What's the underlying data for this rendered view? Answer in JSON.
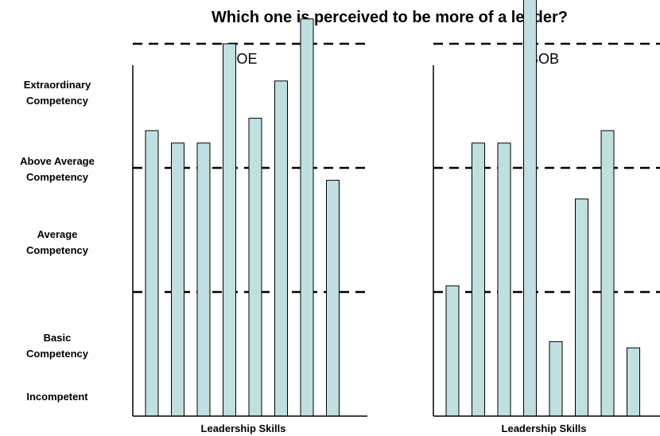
{
  "chart_data": {
    "type": "bar",
    "title": "Which one is perceived to be more of a leader?",
    "y_levels": [
      {
        "lines": [
          "Extraordinary",
          "Competency"
        ]
      },
      {
        "lines": [
          "Above Average",
          "Competency"
        ]
      },
      {
        "lines": [
          "Average",
          "Competency"
        ]
      },
      {
        "lines": [
          "Basic",
          "Competency"
        ]
      },
      {
        "lines": [
          "Incompetent"
        ]
      }
    ],
    "thresholds": [
      1,
      2,
      3
    ],
    "ylim": [
      0,
      4.6
    ],
    "bar_color": "#bfdfe0",
    "panels": [
      {
        "title": "JOE",
        "xlabel": "Leadership Skills",
        "values": [
          2.3,
          2.2,
          2.2,
          3.0,
          2.4,
          2.7,
          3.2,
          1.9
        ]
      },
      {
        "title": "BOB",
        "xlabel": "Leadership Skills",
        "values": [
          1.05,
          2.2,
          2.2,
          4.5,
          0.6,
          1.75,
          2.3,
          0.55
        ]
      }
    ]
  }
}
